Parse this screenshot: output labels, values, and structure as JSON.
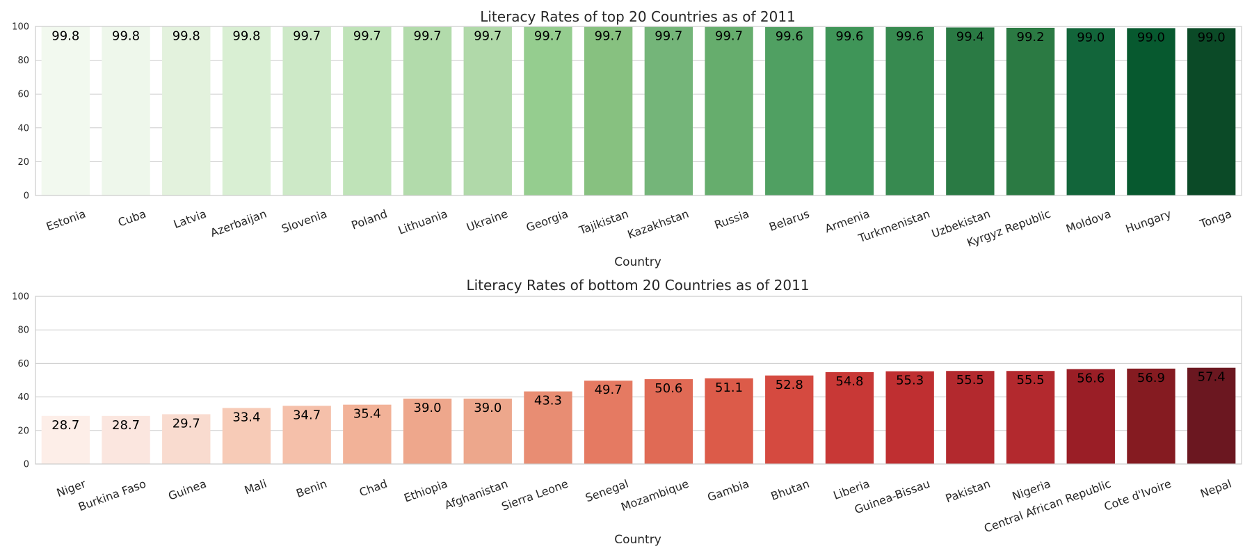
{
  "chart_data": [
    {
      "type": "bar",
      "title": "Literacy Rates of top 20 Countries as of 2011",
      "xlabel": "Country",
      "ylabel": "",
      "ylim": [
        0,
        100
      ],
      "yticks": [
        "0",
        "20",
        "40",
        "60",
        "80",
        "100"
      ],
      "grid": true,
      "categories": [
        "Estonia",
        "Cuba",
        "Latvia",
        "Azerbaijan",
        "Slovenia",
        "Poland",
        "Lithuania",
        "Ukraine",
        "Georgia",
        "Tajikistan",
        "Kazakhstan",
        "Russia",
        "Belarus",
        "Armenia",
        "Turkmenistan",
        "Uzbekistan",
        "Kyrgyz Republic",
        "Moldova",
        "Hungary",
        "Tonga"
      ],
      "values": [
        99.8,
        99.8,
        99.8,
        99.8,
        99.7,
        99.7,
        99.7,
        99.7,
        99.7,
        99.7,
        99.7,
        99.7,
        99.6,
        99.6,
        99.6,
        99.4,
        99.2,
        99.0,
        99.0,
        99.0
      ],
      "labels": [
        "99.8",
        "99.8",
        "99.8",
        "99.8",
        "99.7",
        "99.7",
        "99.7",
        "99.7",
        "99.7",
        "99.7",
        "99.7",
        "99.7",
        "99.6",
        "99.6",
        "99.6",
        "99.4",
        "99.2",
        "99.0",
        "99.0",
        "99.0"
      ],
      "colors": [
        "#f2f9ef",
        "#eef7eb",
        "#e3f2dd",
        "#d9efd3",
        "#cde9c7",
        "#bfe3b8",
        "#b2dbab",
        "#b0d9a9",
        "#95cd8f",
        "#87c180",
        "#74b579",
        "#66ad6d",
        "#50a062",
        "#3f9558",
        "#378a50",
        "#2a7a44",
        "#2b7a43",
        "#12653a",
        "#07592f",
        "#0b4a27"
      ]
    },
    {
      "type": "bar",
      "title": "Literacy Rates of bottom 20 Countries as of 2011",
      "xlabel": "Country",
      "ylabel": "",
      "ylim": [
        0,
        100
      ],
      "yticks": [
        "0",
        "20",
        "40",
        "60",
        "80",
        "100"
      ],
      "grid": true,
      "categories": [
        "Niger",
        "Burkina Faso",
        "Guinea",
        "Mali",
        "Benin",
        "Chad",
        "Ethiopia",
        "Afghanistan",
        "Sierra Leone",
        "Senegal",
        "Mozambique",
        "Gambia",
        "Bhutan",
        "Liberia",
        "Guinea-Bissau",
        "Pakistan",
        "Nigeria",
        "Central African Republic",
        "Cote d'Ivoire",
        "Nepal"
      ],
      "values": [
        28.7,
        28.7,
        29.7,
        33.4,
        34.7,
        35.4,
        39.0,
        39.0,
        43.3,
        49.7,
        50.6,
        51.1,
        52.8,
        54.8,
        55.3,
        55.5,
        55.5,
        56.6,
        56.9,
        57.4
      ],
      "labels": [
        "28.7",
        "28.7",
        "29.7",
        "33.4",
        "34.7",
        "35.4",
        "39.0",
        "39.0",
        "43.3",
        "49.7",
        "50.6",
        "51.1",
        "52.8",
        "54.8",
        "55.3",
        "55.5",
        "55.5",
        "56.6",
        "56.9",
        "57.4"
      ],
      "colors": [
        "#fdeee8",
        "#fbe6df",
        "#f9dbcf",
        "#f7cbb7",
        "#f5c0aa",
        "#f2b298",
        "#eea78c",
        "#eda78c",
        "#e88d73",
        "#e57a62",
        "#e06a55",
        "#dc5b49",
        "#d54a40",
        "#c83836",
        "#bf2f31",
        "#b3292e",
        "#b3292e",
        "#9a1e26",
        "#851b21",
        "#6b1720"
      ]
    }
  ]
}
